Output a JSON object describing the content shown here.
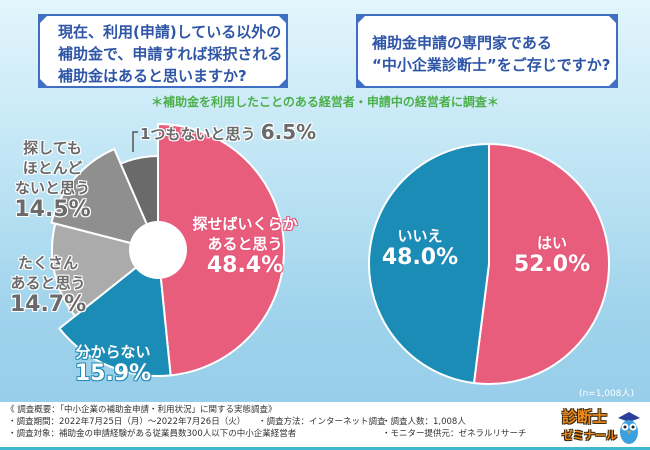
{
  "questions": {
    "q1": [
      "現在、利用(申請)している以外の",
      "補助金で、申請すれば採択される",
      "補助金はあると思いますか?"
    ],
    "q2": [
      "補助金申請の専門家である",
      "“中小企業診断士”をご存じですか?"
    ]
  },
  "note": "＊補助金を利用したことのある経営者・申請中の経営者に調査＊",
  "sample_note": "(n=1,008人)",
  "colors": {
    "pink": "#e85c7c",
    "blue": "#1b8cb6",
    "gray_light": "#ababab",
    "gray_mid": "#8f8f8f",
    "gray_dark": "#6a6a6a",
    "title": "#2f56a6",
    "note": "#4cb04a"
  },
  "chart_data": [
    {
      "type": "pie",
      "title": "現在、利用(申請)している以外の補助金で、申請すれば採択される補助金はあると思いますか?",
      "unit": "%",
      "slices": [
        {
          "label": "探せばいくらかあると思う",
          "label_lines": [
            "探せばいくらか",
            "あると思う"
          ],
          "value": 48.4,
          "value_text": "48.4%",
          "color": "#e85c7c"
        },
        {
          "label": "分からない",
          "label_lines": [
            "分からない"
          ],
          "value": 15.9,
          "value_text": "15.9%",
          "color": "#1b8cb6"
        },
        {
          "label": "たくさんあると思う",
          "label_lines": [
            "たくさん",
            "あると思う"
          ],
          "value": 14.7,
          "value_text": "14.7%",
          "color": "#ababab"
        },
        {
          "label": "探してもほとんどないと思う",
          "label_lines": [
            "探しても",
            "ほとんど",
            "ないと思う"
          ],
          "value": 14.5,
          "value_text": "14.5%",
          "color": "#8f8f8f"
        },
        {
          "label": "1つもないと思う",
          "label_lines": [
            "1つもないと思う"
          ],
          "value": 6.5,
          "value_text": "6.5%",
          "color": "#6a6a6a"
        }
      ]
    },
    {
      "type": "pie",
      "title": "補助金申請の専門家である“中小企業診断士”をご存じですか?",
      "unit": "%",
      "slices": [
        {
          "label": "はい",
          "label_lines": [
            "はい"
          ],
          "value": 52.0,
          "value_text": "52.0%",
          "color": "#e85c7c"
        },
        {
          "label": "いいえ",
          "label_lines": [
            "いいえ"
          ],
          "value": 48.0,
          "value_text": "48.0%",
          "color": "#1b8cb6"
        }
      ]
    }
  ],
  "footer": {
    "heading": "《 調査概要：「中小企業の補助金申請・利用状況」に関する実態調査》",
    "period": "・調査期間：2022年7月25日（月）～2022年7月26日（火）",
    "method": "・調査方法：インターネット調査",
    "count": "・調査人数：1,008人",
    "target": "・調査対象：補助金の申請経験がある従業員数300人以下の中小企業経営者",
    "provider": "・モニター提供元：ゼネラルリサーチ"
  },
  "logo": {
    "line1": "診断士",
    "line2": "ゼミナール"
  }
}
